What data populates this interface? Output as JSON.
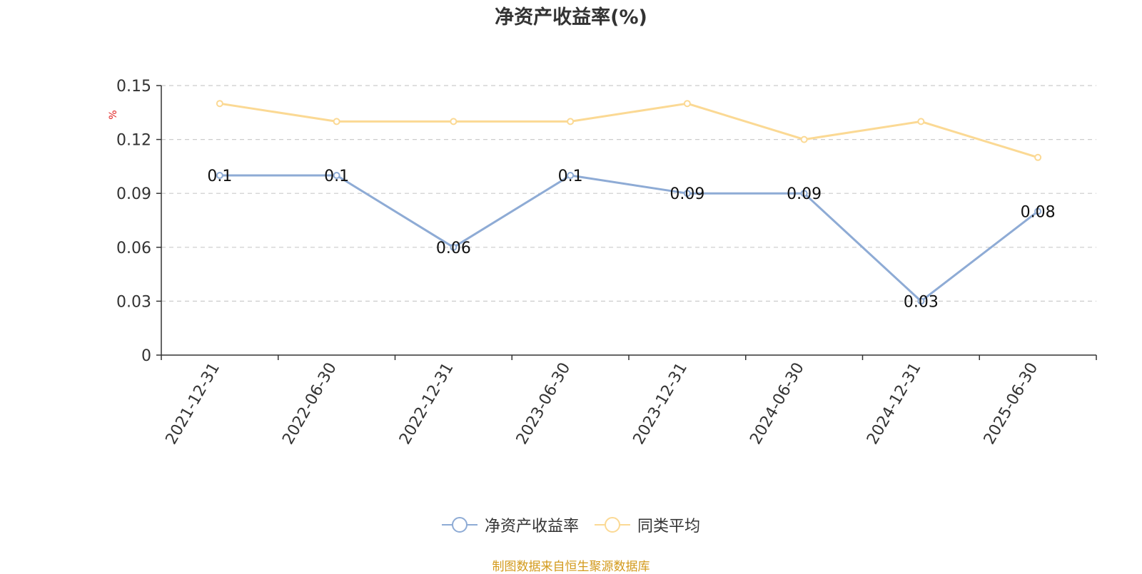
{
  "chart_data": {
    "type": "line",
    "title": "净资产收益率(%)",
    "ylabel": "%",
    "xlabel": "",
    "categories": [
      "2021-12-31",
      "2022-06-30",
      "2022-12-31",
      "2023-06-30",
      "2023-12-31",
      "2024-06-30",
      "2024-12-31",
      "2025-06-30"
    ],
    "ylim": [
      0,
      0.15
    ],
    "yticks": [
      "0",
      "0.03",
      "0.06",
      "0.09",
      "0.12",
      "0.15"
    ],
    "grid": true,
    "legend_position": "bottom",
    "series": [
      {
        "name": "净资产收益率",
        "color": "#8eabd5",
        "values": [
          0.1,
          0.1,
          0.06,
          0.1,
          0.09,
          0.09,
          0.03,
          0.08
        ],
        "data_labels": [
          "0.1",
          "0.1",
          "0.06",
          "0.1",
          "0.09",
          "0.09",
          "0.03",
          "0.08"
        ]
      },
      {
        "name": "同类平均",
        "color": "#fbd994",
        "values": [
          0.14,
          0.13,
          0.13,
          0.13,
          0.14,
          0.12,
          0.13,
          0.11
        ]
      }
    ]
  },
  "footer": {
    "source": "制图数据来自恒生聚源数据库"
  }
}
